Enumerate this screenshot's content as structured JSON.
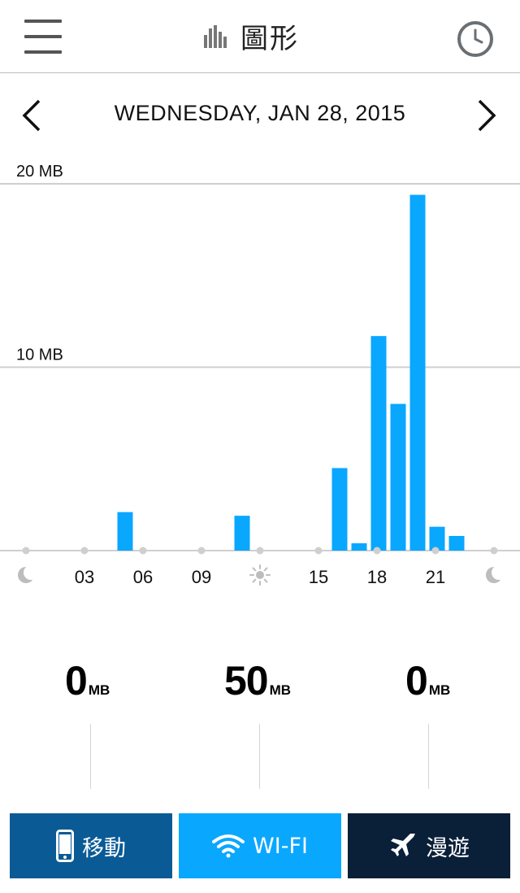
{
  "header": {
    "title": "圖形",
    "menu_icon": "hamburger-menu-icon",
    "title_icon": "bar-chart-icon",
    "clock_icon": "clock-icon"
  },
  "date_bar": {
    "date": "WEDNESDAY, JAN 28, 2015",
    "prev_icon": "chevron-left-icon",
    "next_icon": "chevron-right-icon"
  },
  "chart_data": {
    "type": "bar",
    "y_axis_labels": [
      "20 MB",
      "10 MB"
    ],
    "y_gridlines": [
      20,
      10
    ],
    "ylim": [
      0,
      20
    ],
    "x_tick_labels": [
      "moon-icon",
      "03",
      "06",
      "09",
      "sun-icon",
      "15",
      "18",
      "21",
      "moon-icon"
    ],
    "categories": [
      0,
      1,
      2,
      3,
      4,
      5,
      6,
      7,
      8,
      9,
      10,
      11,
      12,
      13,
      14,
      15,
      16,
      17,
      18,
      19,
      20,
      21,
      22,
      23
    ],
    "values": [
      0,
      0,
      0,
      0,
      0,
      2.1,
      0,
      0,
      0,
      0,
      0,
      1.9,
      0,
      0,
      0,
      0,
      4.5,
      0.4,
      11.7,
      8.0,
      19.4,
      1.3,
      0.8,
      0
    ],
    "bar_color": "#0aa7ff"
  },
  "totals": [
    {
      "value": "0",
      "unit": "MB"
    },
    {
      "value": "50",
      "unit": "MB"
    },
    {
      "value": "0",
      "unit": "MB"
    }
  ],
  "tabs": [
    {
      "label": "移動",
      "icon": "smartphone-icon",
      "color": "#0a5a96"
    },
    {
      "label": "WI-FI",
      "icon": "wifi-icon",
      "color": "#0aa7ff"
    },
    {
      "label": "漫遊",
      "icon": "airplane-icon",
      "color": "#0a1f38"
    }
  ]
}
